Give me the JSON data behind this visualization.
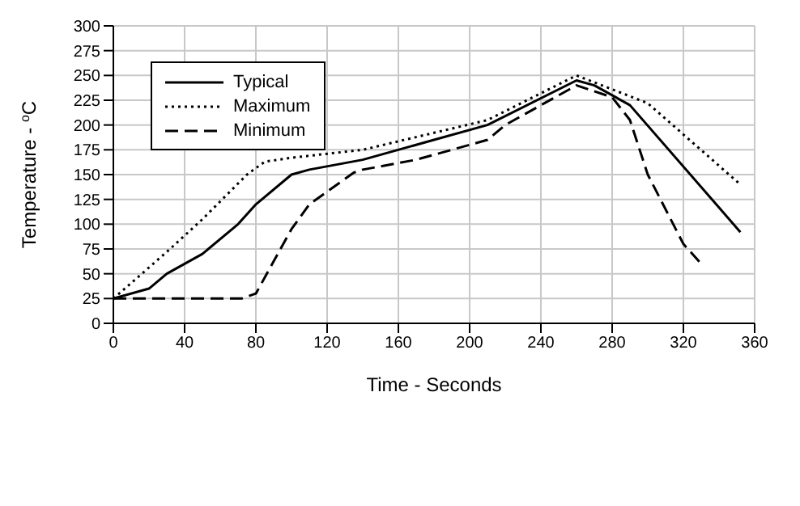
{
  "chart_data": {
    "type": "line",
    "xlabel": "Time - Seconds",
    "ylabel": "Temperature - $^{o}$C",
    "xlim": [
      0,
      360
    ],
    "xticks": [
      0,
      40,
      80,
      120,
      160,
      200,
      240,
      280,
      320,
      360
    ],
    "ylim": [
      0,
      300
    ],
    "yticks": [
      0,
      25,
      50,
      75,
      100,
      125,
      150,
      175,
      200,
      225,
      250,
      275,
      300
    ],
    "grid": true,
    "legend": "top left",
    "marker": "none",
    "series": [
      {
        "name": "Typical",
        "color": "#000000",
        "line_style": "solid",
        "x": [
          0,
          20,
          30,
          50,
          70,
          80,
          100,
          110,
          140,
          180,
          210,
          260,
          270,
          290,
          352
        ],
        "values": [
          25,
          35,
          50,
          70,
          100,
          120,
          150,
          155,
          165,
          185,
          200,
          245,
          240,
          220,
          92
        ]
      },
      {
        "name": "Maximum",
        "color": "#000000",
        "line_style": "dotted",
        "x": [
          0,
          30,
          50,
          75,
          85,
          100,
          140,
          210,
          260,
          300,
          352
        ],
        "values": [
          25,
          72,
          105,
          150,
          163,
          167,
          175,
          205,
          250,
          222,
          140
        ]
      },
      {
        "name": "Minimum",
        "color": "#000000",
        "line_style": "dashed",
        "x": [
          0,
          72,
          80,
          100,
          110,
          135,
          140,
          170,
          210,
          220,
          260,
          280,
          290,
          300,
          320,
          330
        ],
        "values": [
          25,
          25,
          30,
          95,
          120,
          152,
          155,
          165,
          185,
          200,
          240,
          228,
          205,
          150,
          80,
          60
        ]
      }
    ]
  }
}
